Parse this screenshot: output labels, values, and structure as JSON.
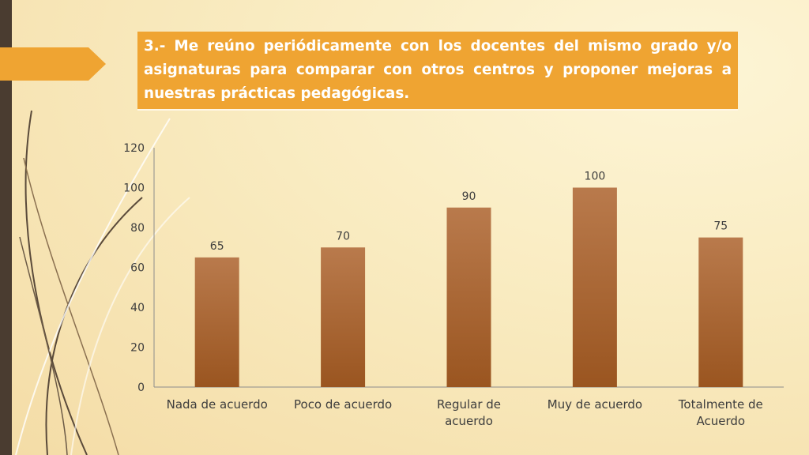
{
  "title": {
    "text": "3.- Me reúno periódicamente con los docentes del mismo grado y/o asignaturas para comparar con otros centros y proponer mejoras a nuestras prácticas pedagógicas."
  },
  "colors": {
    "title_bg": "#efa432",
    "bar": "#a85e2c",
    "left_bar": "#4a3c30",
    "arrow": "#efa432"
  },
  "chart_data": {
    "type": "bar",
    "categories": [
      [
        "Nada de acuerdo"
      ],
      [
        "Poco de acuerdo"
      ],
      [
        "Regular de",
        "acuerdo"
      ],
      [
        "Muy de acuerdo"
      ],
      [
        "Totalmente de",
        "Acuerdo"
      ]
    ],
    "values": [
      65,
      70,
      90,
      100,
      75
    ],
    "data_labels": [
      "65",
      "70",
      "90",
      "100",
      "75"
    ],
    "y_ticks": [
      "0",
      "20",
      "40",
      "60",
      "80",
      "100",
      "120"
    ],
    "ylim": [
      0,
      120
    ],
    "grid": false,
    "legend": false
  }
}
